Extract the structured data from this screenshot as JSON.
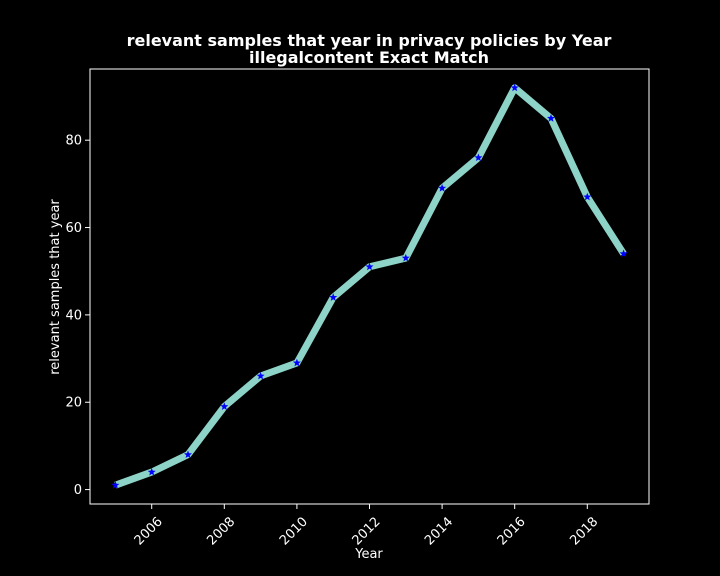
{
  "chart_data": {
    "type": "line",
    "title": "relevant samples that year in privacy policies by Year",
    "subtitle": "illegalcontent Exact Match",
    "xlabel": "Year",
    "ylabel": "relevant samples that year",
    "x": [
      2005,
      2006,
      2007,
      2008,
      2009,
      2010,
      2011,
      2012,
      2013,
      2014,
      2015,
      2016,
      2017,
      2018,
      2019
    ],
    "series": [
      {
        "values": [
          1,
          4,
          8,
          19,
          26,
          29,
          44,
          51,
          53,
          69,
          76,
          92,
          85,
          67,
          54
        ]
      }
    ],
    "xlim": [
      2004.3,
      2019.7
    ],
    "ylim": [
      -3.3,
      96.3
    ],
    "xticks": [
      2006,
      2008,
      2010,
      2012,
      2014,
      2016,
      2018
    ],
    "yticks": [
      0,
      20,
      40,
      60,
      80
    ],
    "line_color": "#8dd3c7",
    "marker_color": "#0000ff",
    "background_color": "#000000",
    "grid": false,
    "legend": "none"
  }
}
